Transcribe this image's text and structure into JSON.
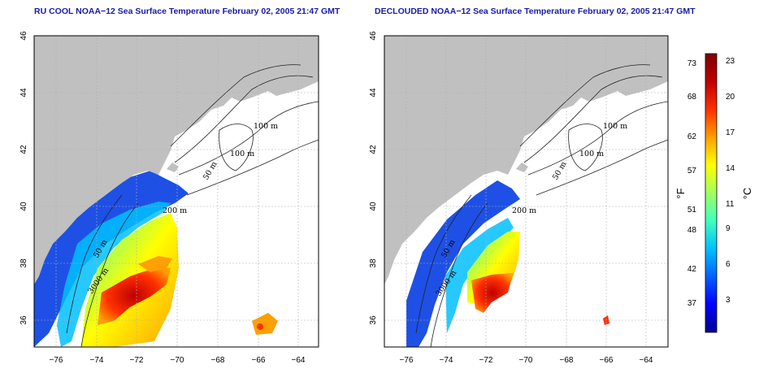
{
  "panels": [
    {
      "id": "left",
      "title": "RU COOL NOAA−12 Sea Surface Temperature February 02, 2005 21:47 GMT",
      "xticks": [
        "−76",
        "−74",
        "−72",
        "−70",
        "−68",
        "−66",
        "−64"
      ],
      "yticks": [
        "46",
        "44",
        "42",
        "40",
        "38",
        "36"
      ],
      "contour_labels": [
        "100 m",
        "100 m",
        "50 m",
        "200 m",
        "50 m",
        "3000 m"
      ],
      "view": "raw"
    },
    {
      "id": "right",
      "title": "DECLOUDED NOAA−12 Sea Surface Temperature February 02, 2005 21:47 GMT",
      "xticks": [
        "−76",
        "−74",
        "−72",
        "−70",
        "−68",
        "−66",
        "−64"
      ],
      "yticks": [
        "46",
        "44",
        "42",
        "40",
        "38",
        "36"
      ],
      "contour_labels": [
        "100 m",
        "100 m",
        "50 m",
        "200 m",
        "50 m",
        "3000 m"
      ],
      "view": "declouded"
    }
  ],
  "colorbar": {
    "fahrenheit_ticks": [
      "73",
      "68",
      "62",
      "57",
      "51",
      "48",
      "42",
      "37"
    ],
    "celsius_ticks": [
      "23",
      "20",
      "17",
      "14",
      "11",
      "9",
      "6",
      "3"
    ],
    "fahrenheit_label": "°F",
    "celsius_label": "°C",
    "colors": [
      "#00008f",
      "#0000ff",
      "#0060ff",
      "#00bfff",
      "#40ffbf",
      "#9fff60",
      "#ffff00",
      "#ff9f00",
      "#ff3000",
      "#bf0000",
      "#800000"
    ]
  },
  "map_extent": {
    "lon_range": [
      -77,
      -63
    ],
    "lat_range": [
      35,
      46
    ]
  },
  "colors": {
    "land": "#c0c0c0",
    "title": "#1a1aa6",
    "grid": "#b0b0b0"
  }
}
